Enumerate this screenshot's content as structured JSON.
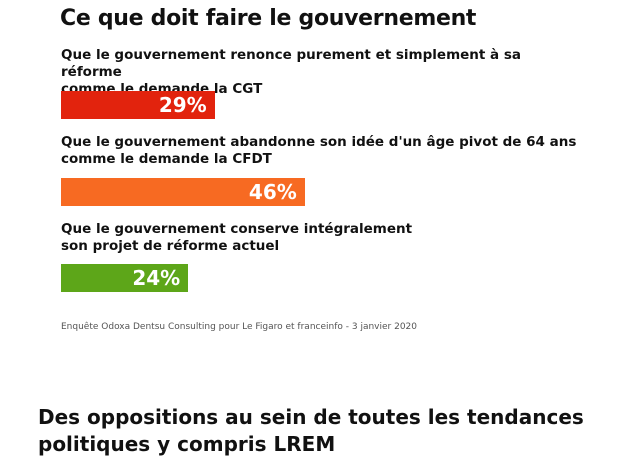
{
  "chart_data": {
    "type": "bar",
    "orientation": "horizontal",
    "title": "Ce que doit faire le gouvernement",
    "categories": [
      "Que le gouvernement renonce purement et simplement à sa réforme comme le demande la CGT",
      "Que le gouvernement abandonne son idée d'un âge pivot de 64 ans comme le demande la CFDT",
      "Que le gouvernement conserve intégralement son projet de réforme actuel"
    ],
    "category_lines": [
      [
        "Que le gouvernement renonce purement et simplement à sa réforme",
        "comme le demande la CGT"
      ],
      [
        "Que le gouvernement abandonne son idée d'un âge pivot de 64 ans",
        "comme le demande la CFDT"
      ],
      [
        "Que le gouvernement conserve intégralement",
        "son projet de réforme actuel"
      ]
    ],
    "values": [
      29,
      46,
      24
    ],
    "value_labels": [
      "29%",
      "46%",
      "24%"
    ],
    "colors": [
      "#e2230d",
      "#f76a22",
      "#5da619"
    ],
    "xlim": [
      0,
      100
    ],
    "grid": false,
    "source": "Enquête Odoxa Dentsu Consulting pour Le Figaro et franceinfo - 3 janvier 2020"
  },
  "caption": "Des oppositions au sein de toutes les tendances politiques y compris LREM"
}
